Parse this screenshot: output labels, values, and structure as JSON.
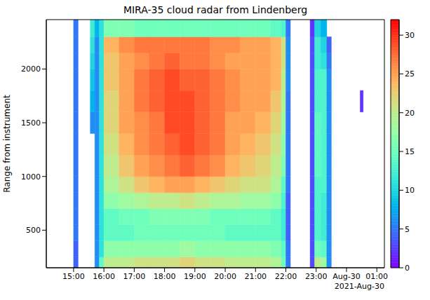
{
  "chart_data": {
    "type": "heatmap",
    "title": "MIRA-35 cloud radar from Lindenberg",
    "y_label": "Range from instrument",
    "x_offset_label": "2021-Aug-30",
    "xlim": [
      14.1,
      25.25
    ],
    "xticks": [
      {
        "value": 15,
        "label": "15:00"
      },
      {
        "value": 16,
        "label": "16:00"
      },
      {
        "value": 17,
        "label": "17:00"
      },
      {
        "value": 18,
        "label": "18:00"
      },
      {
        "value": 19,
        "label": "19:00"
      },
      {
        "value": 20,
        "label": "20:00"
      },
      {
        "value": 21,
        "label": "21:00"
      },
      {
        "value": 22,
        "label": "22:00"
      },
      {
        "value": 23,
        "label": "23:00"
      },
      {
        "value": 24,
        "label": "Aug-30"
      },
      {
        "value": 25,
        "label": "01:00"
      }
    ],
    "ylim": [
      150,
      2460
    ],
    "yticks": [
      500,
      1000,
      1500,
      2000
    ],
    "x_edges": [
      14.1,
      15.0,
      15.15,
      15.55,
      15.7,
      15.85,
      16.0,
      16.5,
      17.0,
      17.5,
      18.0,
      18.5,
      19.0,
      19.5,
      20.0,
      20.5,
      21.0,
      21.5,
      21.85,
      22.0,
      22.15,
      22.8,
      22.95,
      23.15,
      23.35,
      23.5,
      24.45,
      24.55,
      25.25
    ],
    "y_edges": [
      150,
      250,
      400,
      550,
      700,
      850,
      1000,
      1200,
      1400,
      1600,
      1800,
      2000,
      2150,
      2300,
      2460
    ],
    "z": [
      [
        null,
        4,
        null,
        null,
        6,
        14,
        20,
        20,
        21,
        21,
        21,
        22,
        21,
        21,
        20,
        20,
        20,
        19,
        15,
        5,
        null,
        3,
        20,
        18,
        6,
        null,
        null,
        null
      ],
      [
        null,
        4,
        null,
        null,
        6,
        11,
        17,
        17,
        17,
        17,
        17,
        18,
        17,
        17,
        17,
        17,
        17,
        16,
        14,
        5,
        null,
        3,
        15,
        14,
        6,
        null,
        null,
        null
      ],
      [
        null,
        5,
        null,
        null,
        6,
        11,
        14,
        14,
        15,
        15,
        15,
        15,
        15,
        15,
        14,
        14,
        14,
        14,
        12,
        4,
        null,
        3,
        13,
        12,
        6,
        null,
        null,
        null
      ],
      [
        null,
        5,
        null,
        null,
        6,
        11,
        14,
        15,
        15,
        16,
        16,
        16,
        16,
        15,
        15,
        15,
        15,
        14,
        12,
        4,
        null,
        3,
        13,
        12,
        6,
        null,
        null,
        null
      ],
      [
        null,
        5,
        null,
        null,
        6,
        11,
        17,
        18,
        19,
        20,
        20,
        21,
        20,
        19,
        19,
        18,
        18,
        17,
        13,
        4,
        null,
        3,
        13,
        12,
        6,
        null,
        null,
        null
      ],
      [
        null,
        5,
        null,
        null,
        6,
        11,
        19,
        21,
        23,
        24,
        25,
        25,
        24,
        23,
        22,
        21,
        21,
        19,
        14,
        5,
        null,
        3,
        13,
        13,
        6,
        null,
        null,
        null
      ],
      [
        null,
        5,
        null,
        null,
        6,
        11,
        20,
        23,
        25,
        26,
        27,
        28,
        27,
        26,
        24,
        23,
        22,
        20,
        16,
        5,
        null,
        3,
        14,
        13,
        6,
        null,
        null,
        null
      ],
      [
        null,
        5,
        null,
        null,
        6,
        11,
        21,
        24,
        26,
        27,
        28,
        29,
        28,
        27,
        25,
        24,
        23,
        21,
        17,
        5,
        null,
        3,
        14,
        13,
        6,
        null,
        null,
        null
      ],
      [
        null,
        5,
        null,
        6,
        6,
        11,
        22,
        25,
        26,
        27,
        29,
        29,
        28,
        27,
        25,
        25,
        24,
        22,
        18,
        5,
        null,
        3,
        14,
        13,
        6,
        null,
        null,
        null
      ],
      [
        null,
        5,
        null,
        8,
        6,
        11,
        22,
        25,
        27,
        28,
        29,
        29,
        28,
        27,
        26,
        25,
        25,
        23,
        19,
        5,
        null,
        3,
        13,
        13,
        6,
        null,
        2,
        null
      ],
      [
        null,
        5,
        null,
        9,
        6,
        11,
        23,
        25,
        27,
        28,
        29,
        28,
        28,
        27,
        26,
        25,
        25,
        24,
        20,
        6,
        null,
        3,
        13,
        13,
        6,
        null,
        null,
        null
      ],
      [
        null,
        5,
        null,
        10,
        6,
        11,
        23,
        25,
        26,
        27,
        28,
        27,
        27,
        26,
        25,
        25,
        25,
        24,
        21,
        6,
        null,
        3,
        12,
        11,
        5,
        null,
        null,
        null
      ],
      [
        null,
        5,
        null,
        11,
        6,
        11,
        24,
        26,
        27,
        27,
        27,
        27,
        27,
        26,
        26,
        25,
        25,
        24,
        21,
        6,
        null,
        3,
        12,
        10,
        4,
        null,
        null,
        null
      ],
      [
        null,
        5,
        null,
        12,
        8,
        11,
        16,
        16,
        15,
        15,
        15,
        15,
        15,
        15,
        15,
        15,
        15,
        14,
        13,
        5,
        null,
        2,
        10,
        8,
        null,
        null,
        null,
        null
      ]
    ],
    "colorbar": {
      "range": [
        0,
        32
      ],
      "ticks": [
        0,
        5,
        10,
        15,
        20,
        25,
        30
      ]
    }
  }
}
